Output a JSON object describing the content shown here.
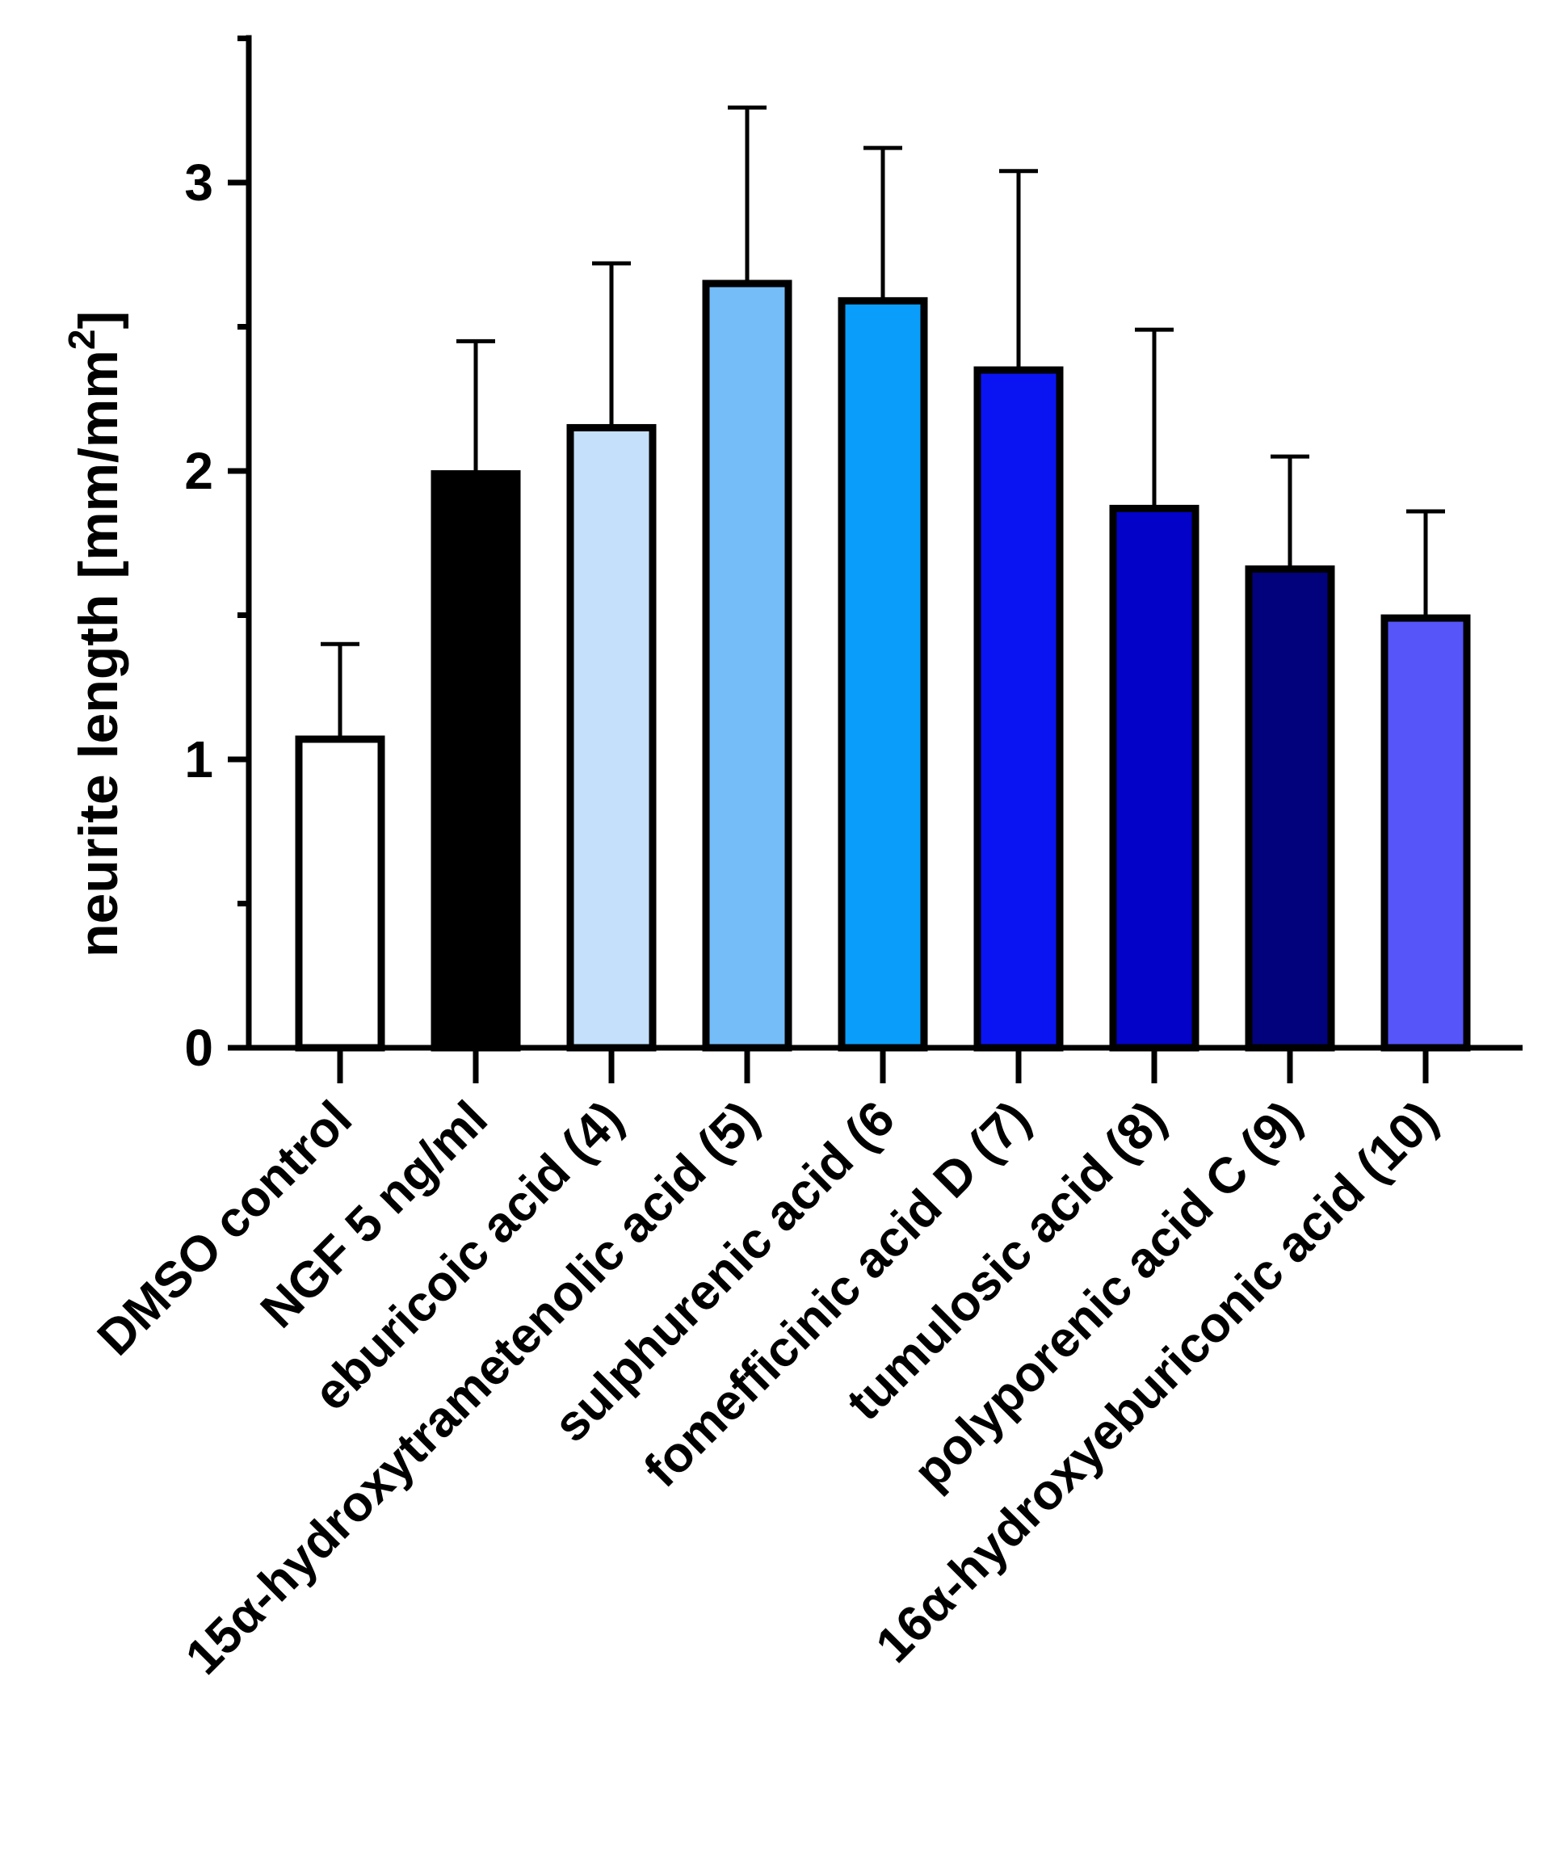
{
  "chart_data": {
    "type": "bar",
    "title": "",
    "xlabel": "",
    "ylabel": "neurite length [mm/mm",
    "ylabel_superscript": "2",
    "ylabel_close": "]",
    "ylim": [
      0,
      3.5
    ],
    "yticks_major": [
      0,
      1,
      2,
      3
    ],
    "yticks_major_labels": [
      "0",
      "1",
      "2",
      "3"
    ],
    "yticks_minor": [
      0.5,
      1.5,
      2.5,
      3.5
    ],
    "grid": false,
    "legend": "none",
    "categories": [
      "DMSO control",
      "NGF 5 ng/ml",
      "eburicoic acid (4)",
      "15α-hydroxytrametenolic acid (5)",
      "sulphurenic acid (6",
      "fomefficinic acid D (7)",
      "tumulosic acid (8)",
      "polyporenic acid C (9)",
      "16α-hydroxyeburiconic acid (10)"
    ],
    "values": [
      1.07,
      1.99,
      2.15,
      2.65,
      2.59,
      2.35,
      1.87,
      1.66,
      1.49
    ],
    "error_upper": [
      1.4,
      2.45,
      2.72,
      3.26,
      3.12,
      3.04,
      2.49,
      2.05,
      1.86
    ],
    "colors": [
      "#ffffff",
      "#000000",
      "#c4e0fa",
      "#75bdf8",
      "#0a9dfa",
      "#0a14f2",
      "#0202c8",
      "#02027c",
      "#5555fa"
    ]
  }
}
